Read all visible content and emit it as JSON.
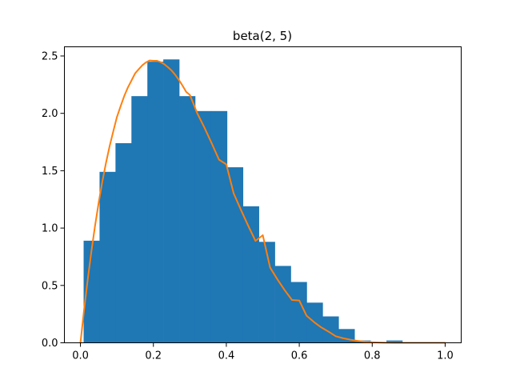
{
  "chart_data": {
    "type": "bar",
    "title": "beta(2, 5)",
    "xlabel": "",
    "ylabel": "",
    "xlim": [
      -0.044,
      1.044
    ],
    "ylim": [
      0,
      2.58
    ],
    "grid": false,
    "x_ticks": [
      0.0,
      0.2,
      0.4,
      0.6,
      0.8,
      1.0
    ],
    "x_tick_labels": [
      "0.0",
      "0.2",
      "0.4",
      "0.6",
      "0.8",
      "1.0"
    ],
    "y_ticks": [
      0.0,
      0.5,
      1.0,
      1.5,
      2.0,
      2.5
    ],
    "y_tick_labels": [
      "0.0",
      "0.5",
      "1.0",
      "1.5",
      "2.0",
      "2.5"
    ],
    "histogram": {
      "color": "#1f77b4",
      "bin_width": 0.0437,
      "bin_starts": [
        0.0087,
        0.0524,
        0.0961,
        0.1398,
        0.1835,
        0.2272,
        0.2709,
        0.3146,
        0.3583,
        0.402,
        0.4457,
        0.4894,
        0.5331,
        0.5768,
        0.6205,
        0.6642,
        0.7079,
        0.7516,
        0.7953,
        0.839
      ],
      "values": [
        0.89,
        1.49,
        1.74,
        2.15,
        2.45,
        2.47,
        2.15,
        2.02,
        2.02,
        1.53,
        1.19,
        0.88,
        0.67,
        0.53,
        0.35,
        0.23,
        0.12,
        0.02,
        0.0,
        0.02
      ]
    },
    "curve": {
      "color": "#ff7f0e",
      "x": [
        0.0,
        0.01,
        0.02,
        0.03,
        0.04,
        0.05,
        0.06,
        0.07,
        0.08,
        0.09,
        0.1,
        0.11,
        0.12,
        0.13,
        0.14,
        0.15,
        0.16,
        0.17,
        0.18,
        0.19,
        0.2,
        0.21,
        0.22,
        0.23,
        0.24,
        0.25,
        0.26,
        0.27,
        0.28,
        0.29,
        0.3,
        0.32,
        0.34,
        0.36,
        0.38,
        0.4,
        0.42,
        0.44,
        0.46,
        0.48,
        0.5,
        0.52,
        0.54,
        0.56,
        0.58,
        0.6,
        0.62,
        0.64,
        0.66,
        0.68,
        0.7,
        0.72,
        0.74,
        0.76,
        0.78,
        0.8,
        0.82,
        0.84,
        0.86,
        0.88,
        0.9,
        0.92,
        0.94,
        0.96,
        0.98,
        1.0
      ],
      "y": [
        0.0,
        0.288,
        0.553,
        0.797,
        1.019,
        1.222,
        1.405,
        1.568,
        1.714,
        1.843,
        1.968,
        2.061,
        2.15,
        2.225,
        2.287,
        2.349,
        2.385,
        2.42,
        2.445,
        2.461,
        2.458,
        2.458,
        2.446,
        2.428,
        2.402,
        2.373,
        2.335,
        2.291,
        2.241,
        2.187,
        2.161,
        2.003,
        1.875,
        1.738,
        1.596,
        1.555,
        1.303,
        1.159,
        1.02,
        0.888,
        0.938,
        0.656,
        0.553,
        0.459,
        0.373,
        0.369,
        0.236,
        0.182,
        0.135,
        0.098,
        0.057,
        0.04,
        0.027,
        0.017,
        0.01,
        0.005,
        0.0024,
        0.0009,
        0.0003,
        0.0,
        0.0,
        0.0,
        0.0,
        0.0,
        0.0,
        0.0
      ]
    }
  }
}
